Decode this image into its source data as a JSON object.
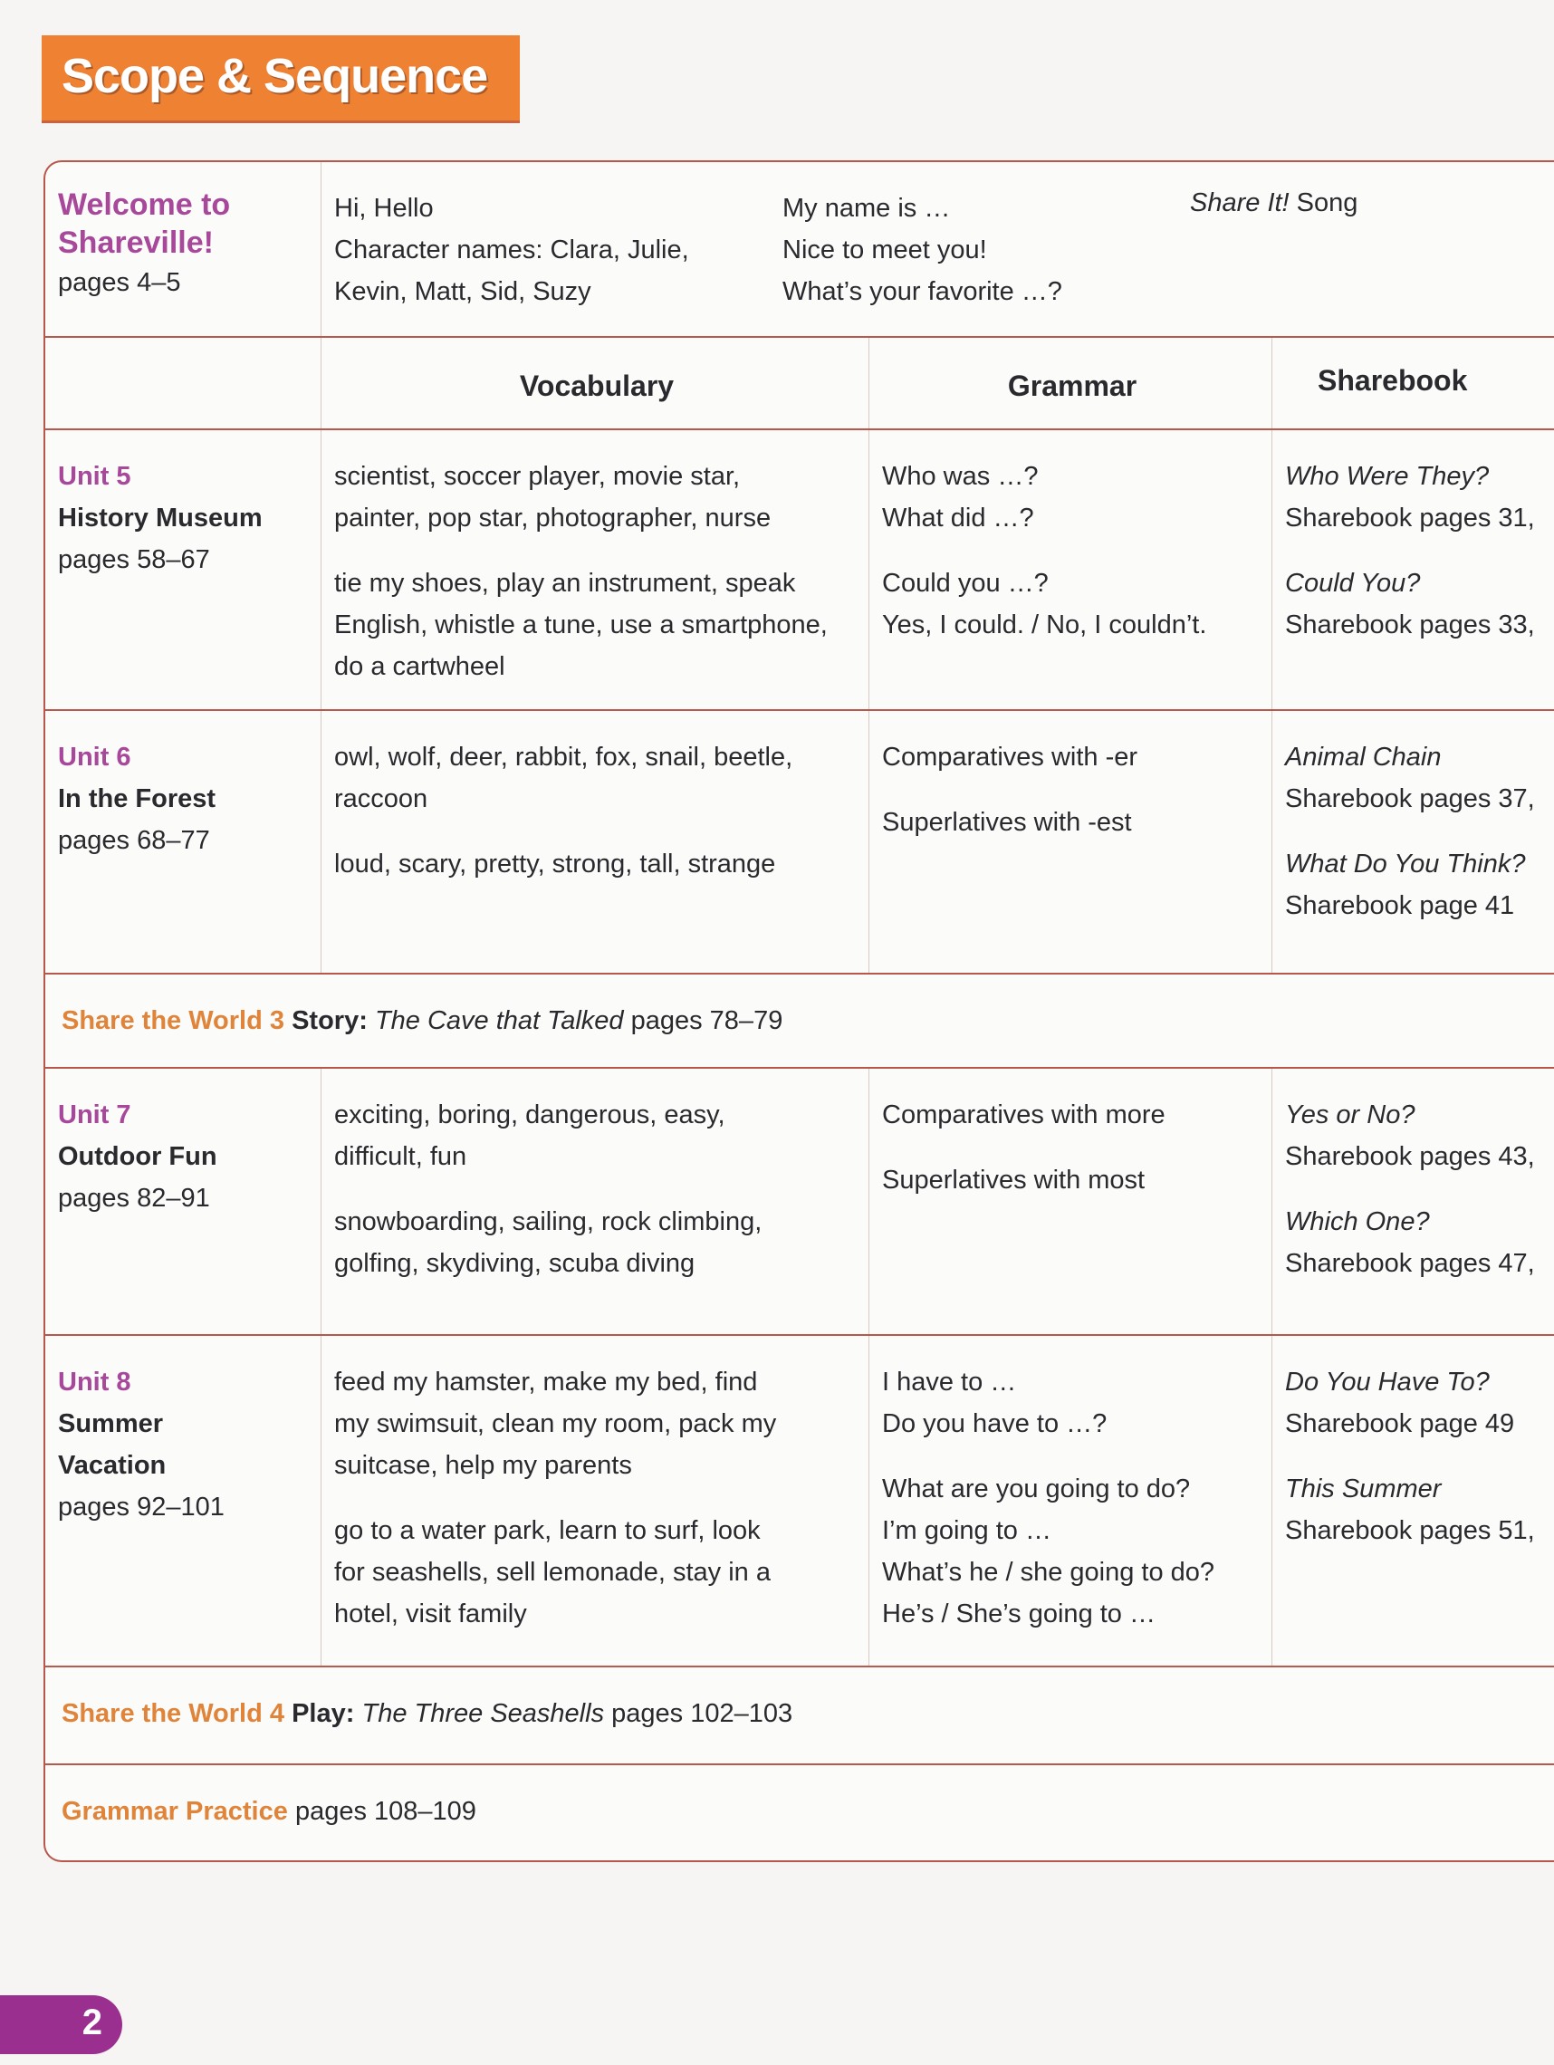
{
  "title": "Scope & Sequence",
  "welcome": {
    "title_line1": "Welcome to",
    "title_line2": "Shareville!",
    "pages": "pages 4–5",
    "col1": [
      "Hi, Hello",
      "Character names: Clara, Julie,",
      "Kevin, Matt, Sid, Suzy"
    ],
    "col2": [
      "My name is …",
      "Nice to meet you!",
      "What’s your favorite …?"
    ],
    "col3_italic": "Share It!",
    "col3_rest": " Song"
  },
  "headers": {
    "vocabulary": "Vocabulary",
    "grammar": "Grammar",
    "sharebook": "Sharebook"
  },
  "units": [
    {
      "unit": "Unit 5",
      "name": [
        "History Museum"
      ],
      "pages": "pages 58–67",
      "vocab": [
        [
          "scientist, soccer player, movie star,",
          "painter, pop star, photographer, nurse"
        ],
        [
          "tie my shoes, play an instrument, speak",
          "English, whistle a tune, use a smartphone,",
          "do a cartwheel"
        ]
      ],
      "grammar": [
        [
          "Who was …?",
          "What did …?"
        ],
        [
          "Could you …?",
          "Yes, I could. / No, I couldn’t."
        ]
      ],
      "sharebook": [
        [
          "Who Were They?",
          "Sharebook pages 31,"
        ],
        [
          "Could You?",
          "Sharebook pages 33,"
        ]
      ]
    },
    {
      "unit": "Unit 6",
      "name": [
        "In the Forest"
      ],
      "pages": "pages 68–77",
      "vocab": [
        [
          "owl, wolf, deer, rabbit, fox, snail, beetle,",
          "raccoon"
        ],
        [
          "loud, scary, pretty, strong, tall, strange"
        ]
      ],
      "grammar": [
        [
          "Comparatives with -er"
        ],
        [
          "Superlatives with -est"
        ]
      ],
      "sharebook": [
        [
          "Animal Chain",
          "Sharebook pages 37,"
        ],
        [
          "What Do You Think?",
          "Sharebook page 41"
        ]
      ]
    },
    {
      "unit": "Unit 7",
      "name": [
        "Outdoor Fun"
      ],
      "pages": "pages 82–91",
      "vocab": [
        [
          "exciting, boring, dangerous, easy,",
          "difficult, fun"
        ],
        [
          "snowboarding, sailing, rock climbing,",
          "golfing, skydiving, scuba diving"
        ]
      ],
      "grammar": [
        [
          "Comparatives with more"
        ],
        [
          "Superlatives with most"
        ]
      ],
      "sharebook": [
        [
          "Yes or No?",
          "Sharebook pages 43,"
        ],
        [
          "Which One?",
          "Sharebook pages 47,"
        ]
      ]
    },
    {
      "unit": "Unit 8",
      "name": [
        "Summer",
        "Vacation"
      ],
      "pages": "pages 92–101",
      "vocab": [
        [
          "feed my hamster, make my bed, find",
          "my swimsuit, clean my room, pack my",
          "suitcase, help my parents"
        ],
        [
          "go to a water park, learn to surf, look",
          "for seashells, sell lemonade, stay in a",
          "hotel, visit family"
        ]
      ],
      "grammar": [
        [
          "I have to …",
          "Do you have to …?"
        ],
        [
          "What are you going to do?",
          "I’m going to …",
          "What’s he / she going to do?",
          "He’s / She’s going to …"
        ]
      ],
      "sharebook": [
        [
          "Do You Have To?",
          "Sharebook page 49"
        ],
        [
          "This Summer",
          "Sharebook pages 51,"
        ]
      ]
    }
  ],
  "share_world_3": {
    "label": "Share the World 3",
    "kind": "Story:",
    "title": "The Cave that Talked",
    "pages": "pages 78–79"
  },
  "share_world_4": {
    "label": "Share the World 4",
    "kind": "Play:",
    "title": "The Three Seashells",
    "pages": "pages 102–103"
  },
  "grammar_practice": {
    "label": "Grammar Practice",
    "pages": "pages 108–109"
  },
  "page_number": "2",
  "colors": {
    "banner": "#ef8133",
    "unit": "#a8489a",
    "share_world": "#e0843a",
    "rule": "#b8574c",
    "page_tab": "#9b2f8f"
  }
}
